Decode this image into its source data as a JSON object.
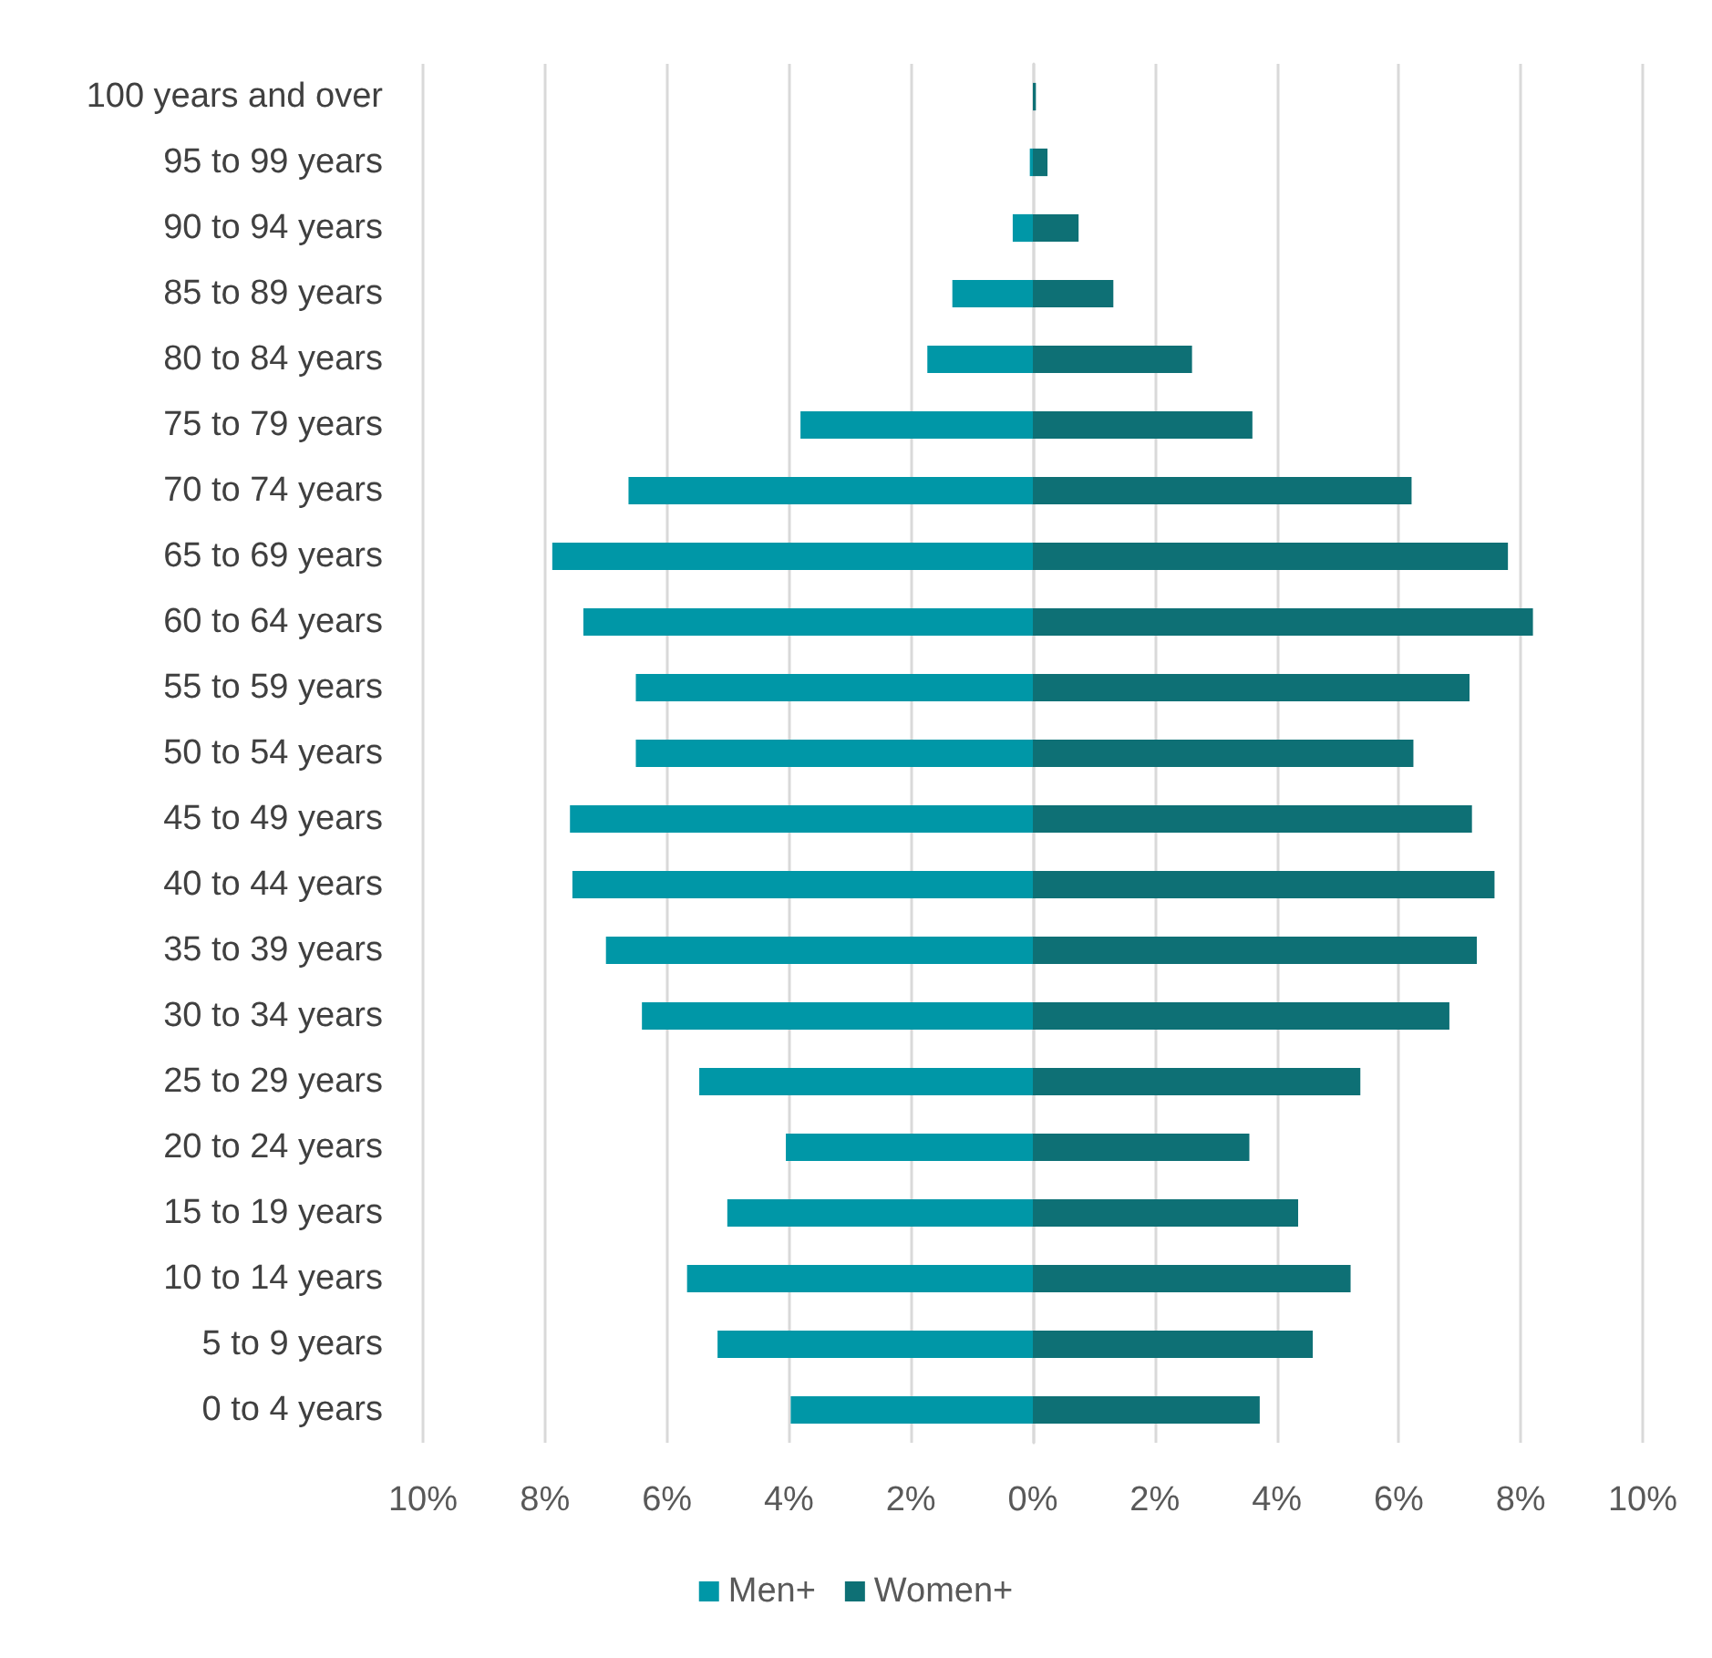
{
  "chart_data": {
    "type": "bar",
    "orientation": "horizontal",
    "categories": [
      "100 years and over",
      "95 to 99 years",
      "90 to 94 years",
      "85 to 89 years",
      "80 to 84 years",
      "75 to 79 years",
      "70 to 74 years",
      "65 to 69 years",
      "60 to 64 years",
      "55 to 59 years",
      "50 to 54 years",
      "45 to 49 years",
      "40 to 44 years",
      "35 to 39 years",
      "30 to 34 years",
      "25 to 29 years",
      "20 to 24 years",
      "15 to 19 years",
      "10 to 14 years",
      "5 to 9 years",
      "0 to 4 years"
    ],
    "series": [
      {
        "name": "Men+",
        "color": "#0097a7",
        "values": [
          0,
          -0.05,
          -0.33,
          -1.32,
          -1.73,
          -3.81,
          -6.63,
          -7.88,
          -7.37,
          -6.51,
          -6.51,
          -7.59,
          -7.55,
          -7.0,
          -6.41,
          -5.47,
          -4.05,
          -5.01,
          -5.67,
          -5.17,
          -3.97
        ]
      },
      {
        "name": "Women+",
        "color": "#0e7075",
        "values": [
          0.05,
          0.24,
          0.75,
          1.32,
          2.61,
          3.6,
          6.21,
          7.79,
          8.2,
          7.16,
          6.24,
          7.2,
          7.57,
          7.28,
          6.83,
          5.37,
          3.55,
          4.35,
          5.21,
          4.59,
          3.72
        ]
      }
    ],
    "xlim": [
      -10,
      10
    ],
    "xticks": [
      {
        "value": -10,
        "label": "10%"
      },
      {
        "value": -8,
        "label": "8%"
      },
      {
        "value": -6,
        "label": "6%"
      },
      {
        "value": -4,
        "label": "4%"
      },
      {
        "value": -2,
        "label": "2%"
      },
      {
        "value": 0,
        "label": "0%"
      },
      {
        "value": 2,
        "label": "2%"
      },
      {
        "value": 4,
        "label": "4%"
      },
      {
        "value": 6,
        "label": "6%"
      },
      {
        "value": 8,
        "label": "8%"
      },
      {
        "value": 10,
        "label": "10%"
      }
    ],
    "stacked": true,
    "grid": "x",
    "legend": "bottom"
  }
}
